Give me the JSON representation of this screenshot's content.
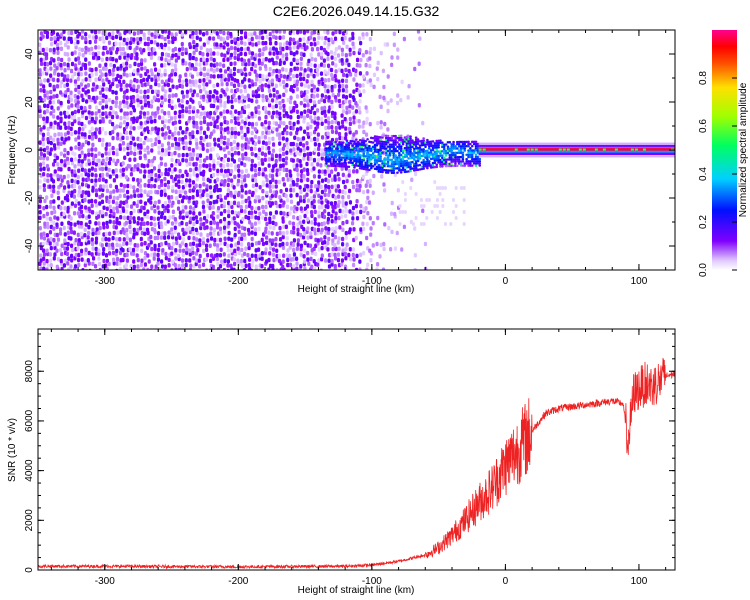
{
  "title": "C2E6.2026.049.14.15.G32",
  "colors": {
    "snr_line": "#ee2222",
    "background": "#ffffff",
    "axis": "#000000"
  },
  "chart_data": [
    {
      "type": "heatmap",
      "name": "spectrogram",
      "xlabel": "Height of straight line (km)",
      "ylabel": "Frequency (Hz)",
      "xlim": [
        -350,
        127
      ],
      "ylim": [
        -50,
        50
      ],
      "xticks": [
        -300,
        -200,
        -100,
        0,
        100
      ],
      "yticks": [
        -40,
        -20,
        0,
        20,
        40
      ],
      "colorbar": {
        "label": "Normalized spectral amplitude",
        "range": [
          0,
          1
        ],
        "ticks": [
          "0.0",
          "0.2",
          "0.4",
          "0.6",
          "0.8"
        ]
      },
      "regions": [
        {
          "x": [
            -350,
            -110
          ],
          "freq": [
            -50,
            50
          ],
          "amplitude": 0.15,
          "description": "broadband noise"
        },
        {
          "x": [
            -135,
            -20
          ],
          "freq": [
            -6,
            5
          ],
          "amplitude": 0.35
        },
        {
          "x": [
            -20,
            127
          ],
          "freq": [
            -1,
            1
          ],
          "amplitude": 0.95
        }
      ]
    },
    {
      "type": "line",
      "name": "snr",
      "xlabel": "Height of straight line (km)",
      "ylabel": "SNR (10 * v/v)",
      "xlim": [
        -350,
        127
      ],
      "ylim": [
        0,
        9700
      ],
      "xticks": [
        -300,
        -200,
        -100,
        0,
        100
      ],
      "yticks": [
        0,
        2000,
        4000,
        6000,
        8000
      ],
      "series": [
        {
          "name": "SNR",
          "x": [
            -350,
            -300,
            -200,
            -120,
            -100,
            -80,
            -60,
            -50,
            -40,
            -30,
            -20,
            -10,
            0,
            10,
            20,
            30,
            40,
            60,
            80,
            88,
            92,
            96,
            100,
            105,
            110,
            115,
            120,
            127
          ],
          "y": [
            150,
            150,
            130,
            150,
            200,
            350,
            600,
            900,
            1400,
            2000,
            2700,
            3300,
            4200,
            4900,
            5600,
            6300,
            6500,
            6650,
            6800,
            6700,
            5200,
            7100,
            7300,
            7500,
            7400,
            7600,
            7800,
            7900
          ]
        }
      ]
    }
  ]
}
